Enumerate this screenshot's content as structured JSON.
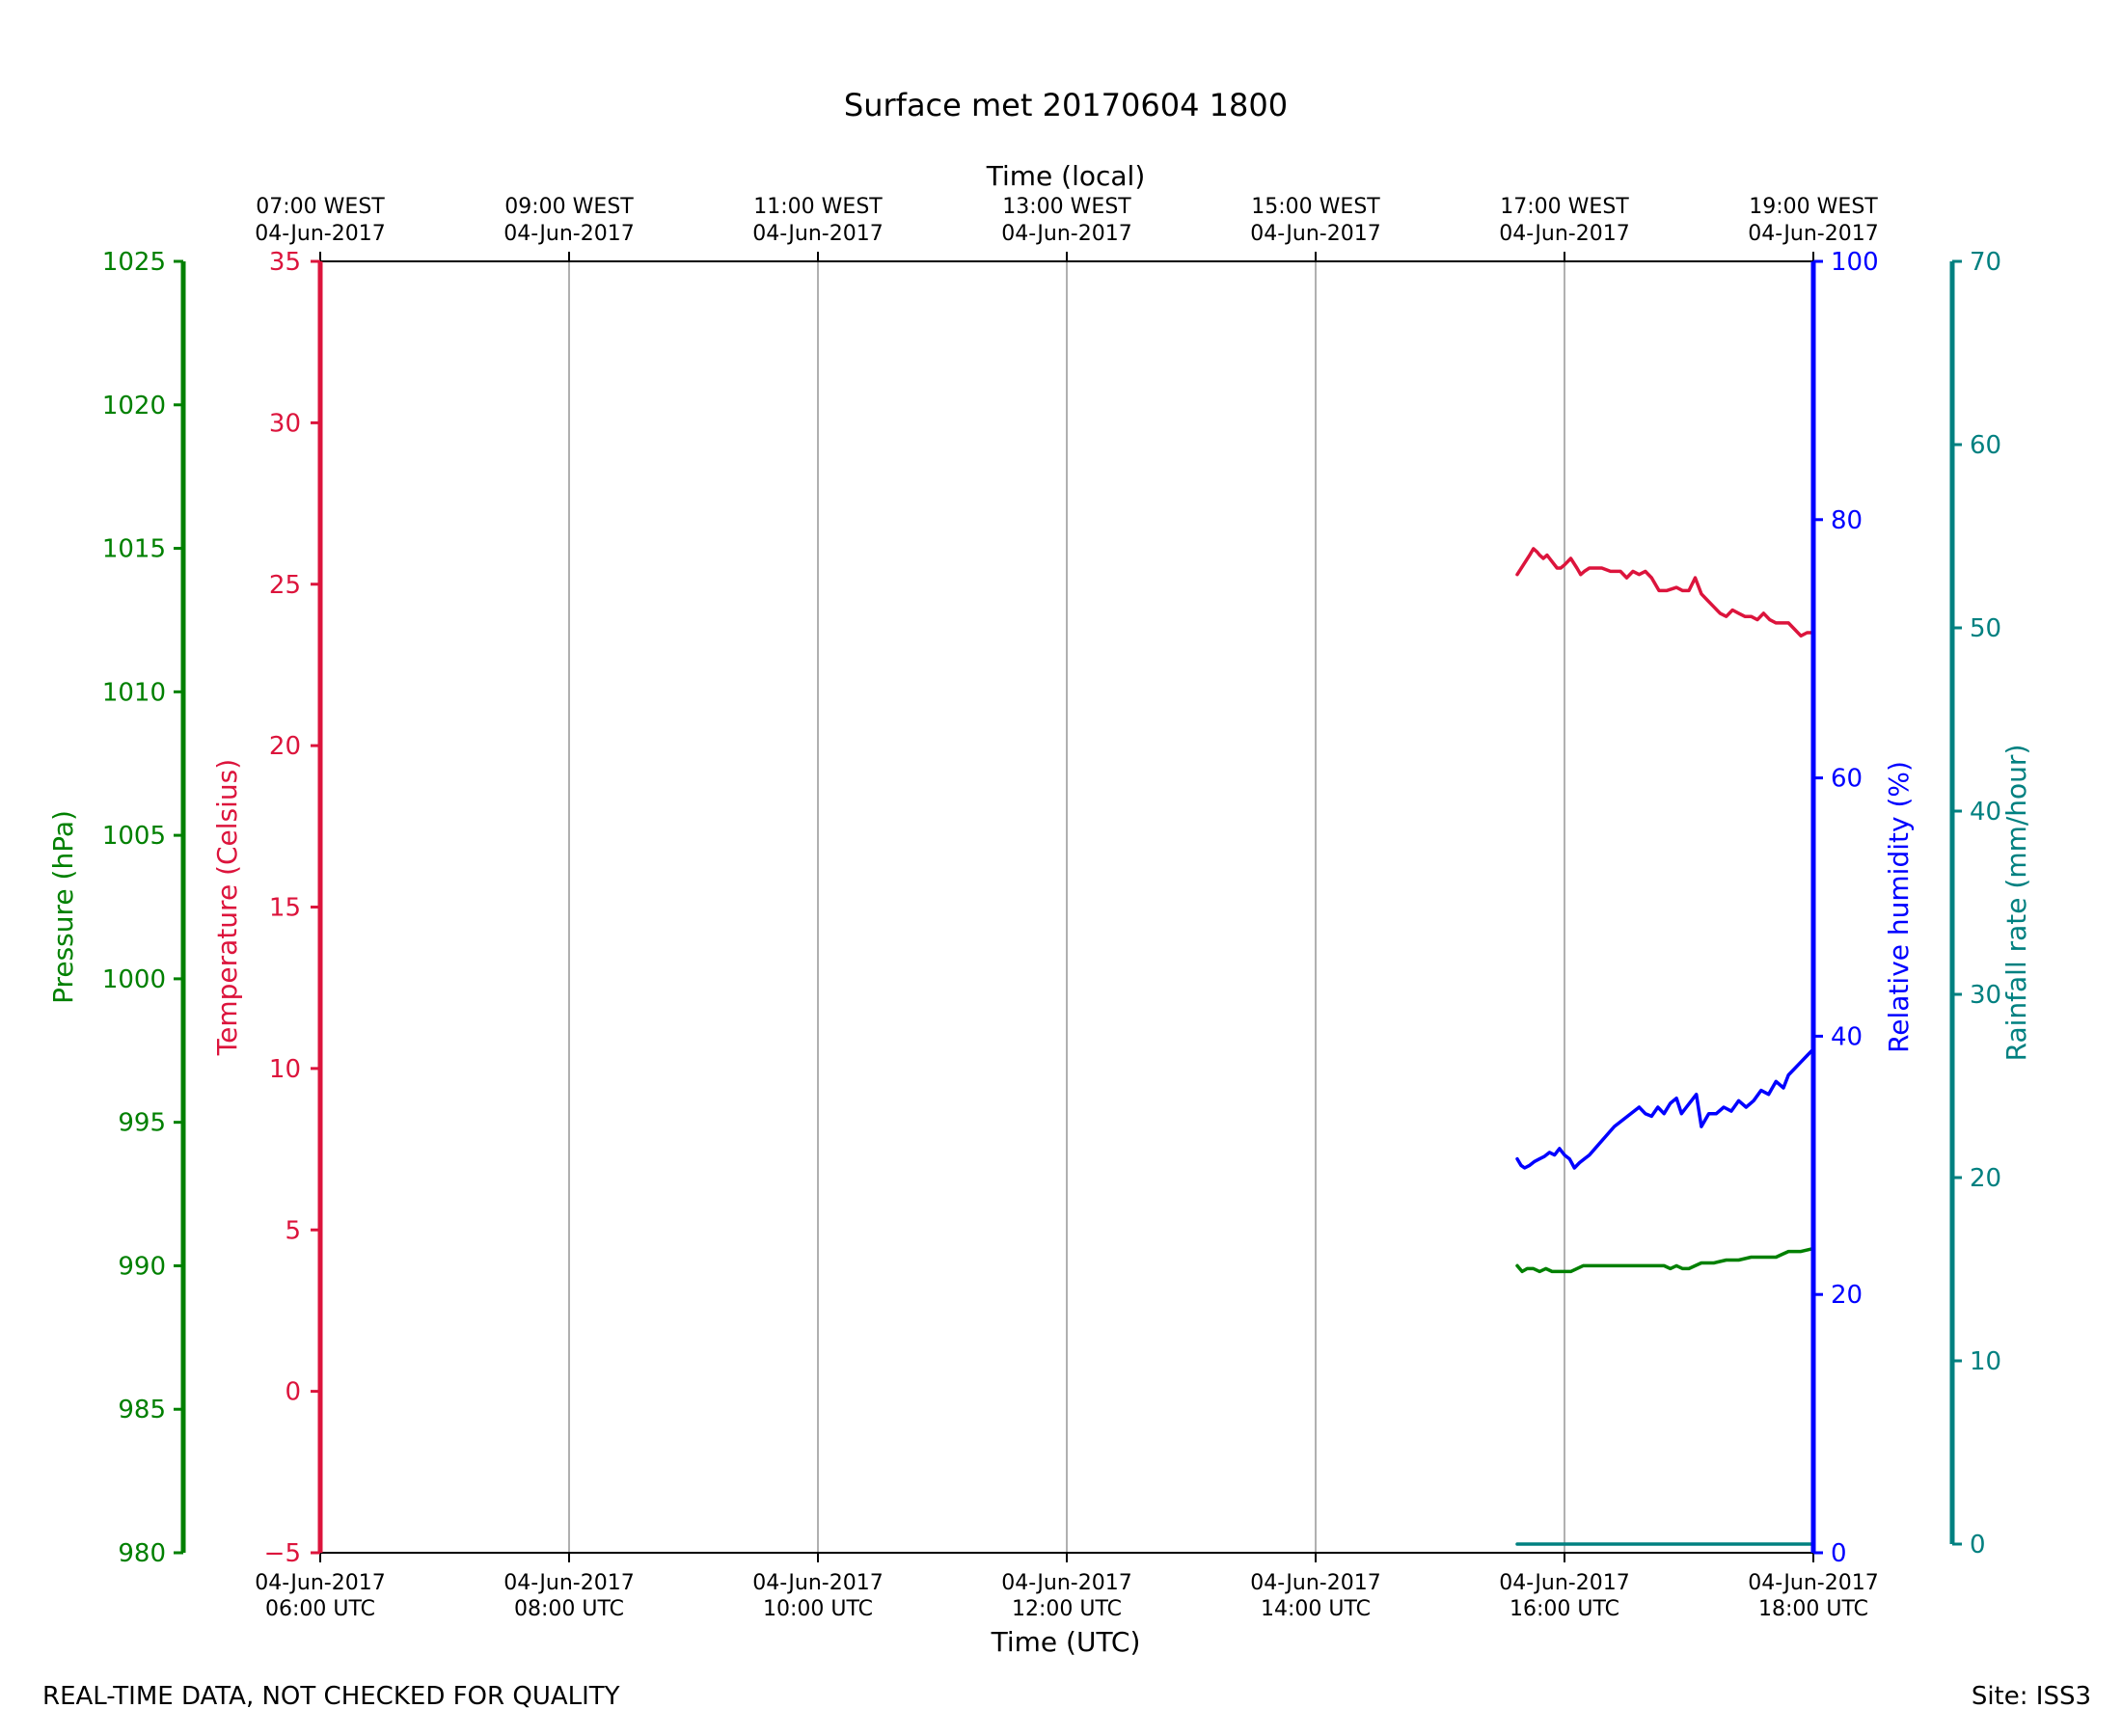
{
  "chart_data": {
    "type": "line",
    "title": "Surface met 20170604 1800",
    "x_unit": "hours UTC on 04-Jun-2017",
    "xlim": [
      6.0,
      18.0
    ],
    "bottom_axis": {
      "label": "Time (UTC)",
      "ticks": [
        {
          "x": 6,
          "l1": "04-Jun-2017",
          "l2": "06:00 UTC"
        },
        {
          "x": 8,
          "l1": "04-Jun-2017",
          "l2": "08:00 UTC"
        },
        {
          "x": 10,
          "l1": "04-Jun-2017",
          "l2": "10:00 UTC"
        },
        {
          "x": 12,
          "l1": "04-Jun-2017",
          "l2": "12:00 UTC"
        },
        {
          "x": 14,
          "l1": "04-Jun-2017",
          "l2": "14:00 UTC"
        },
        {
          "x": 16,
          "l1": "04-Jun-2017",
          "l2": "16:00 UTC"
        },
        {
          "x": 18,
          "l1": "04-Jun-2017",
          "l2": "18:00 UTC"
        }
      ]
    },
    "top_axis": {
      "label": "Time (local)",
      "ticks": [
        {
          "x": 6,
          "l1": "07:00 WEST",
          "l2": "04-Jun-2017"
        },
        {
          "x": 8,
          "l1": "09:00 WEST",
          "l2": "04-Jun-2017"
        },
        {
          "x": 10,
          "l1": "11:00 WEST",
          "l2": "04-Jun-2017"
        },
        {
          "x": 12,
          "l1": "13:00 WEST",
          "l2": "04-Jun-2017"
        },
        {
          "x": 14,
          "l1": "15:00 WEST",
          "l2": "04-Jun-2017"
        },
        {
          "x": 16,
          "l1": "17:00 WEST",
          "l2": "04-Jun-2017"
        },
        {
          "x": 18,
          "l1": "19:00 WEST",
          "l2": "04-Jun-2017"
        }
      ]
    },
    "grid": "vertical",
    "series": [
      {
        "name": "Temperature (Celsius)",
        "axis": "temperature",
        "color": "#dc143c",
        "x": [
          15.62,
          15.67,
          15.72,
          15.75,
          15.78,
          15.8,
          15.83,
          15.86,
          15.9,
          15.94,
          15.97,
          16.0,
          16.05,
          16.1,
          16.13,
          16.16,
          16.2,
          16.25,
          16.3,
          16.37,
          16.45,
          16.5,
          16.55,
          16.6,
          16.65,
          16.7,
          16.76,
          16.82,
          16.9,
          16.95,
          17.0,
          17.05,
          17.1,
          17.15,
          17.2,
          17.25,
          17.3,
          17.35,
          17.4,
          17.45,
          17.5,
          17.55,
          17.6,
          17.65,
          17.7,
          17.75,
          17.8,
          17.85,
          17.9,
          17.95,
          18.0
        ],
        "y": [
          25.3,
          25.6,
          25.9,
          26.1,
          26.0,
          25.9,
          25.8,
          25.9,
          25.7,
          25.5,
          25.5,
          25.6,
          25.8,
          25.5,
          25.3,
          25.4,
          25.5,
          25.5,
          25.5,
          25.4,
          25.4,
          25.2,
          25.4,
          25.3,
          25.4,
          25.2,
          24.8,
          24.8,
          24.9,
          24.8,
          24.8,
          25.2,
          24.7,
          24.5,
          24.3,
          24.1,
          24.0,
          24.2,
          24.1,
          24.0,
          24.0,
          23.9,
          24.1,
          23.9,
          23.8,
          23.8,
          23.8,
          23.6,
          23.4,
          23.5,
          23.5
        ]
      },
      {
        "name": "Relative humidity (%)",
        "axis": "humidity",
        "color": "#0000ff",
        "x": [
          15.62,
          15.65,
          15.68,
          15.72,
          15.76,
          15.8,
          15.84,
          15.88,
          15.92,
          15.96,
          16.0,
          16.04,
          16.08,
          16.12,
          16.16,
          16.2,
          16.4,
          16.6,
          16.65,
          16.7,
          16.75,
          16.8,
          16.85,
          16.9,
          16.94,
          16.98,
          17.02,
          17.06,
          17.1,
          17.16,
          17.22,
          17.28,
          17.34,
          17.4,
          17.46,
          17.52,
          17.58,
          17.64,
          17.7,
          17.76,
          17.8,
          17.85,
          17.9,
          17.95,
          18.0
        ],
        "y": [
          30.5,
          30.0,
          29.8,
          30.0,
          30.3,
          30.5,
          30.7,
          31.0,
          30.8,
          31.3,
          30.8,
          30.5,
          29.8,
          30.2,
          30.5,
          30.8,
          33.0,
          34.5,
          34.0,
          33.8,
          34.5,
          34.0,
          34.8,
          35.2,
          34.0,
          34.5,
          35.0,
          35.5,
          33.0,
          34.0,
          34.0,
          34.5,
          34.2,
          35.0,
          34.5,
          35.0,
          35.8,
          35.5,
          36.5,
          36.0,
          37.0,
          37.5,
          38.0,
          38.5,
          39.0
        ]
      },
      {
        "name": "Pressure (hPa)",
        "axis": "pressure",
        "color": "#008000",
        "x": [
          15.62,
          15.66,
          15.7,
          15.75,
          15.8,
          15.85,
          15.9,
          16.0,
          16.05,
          16.1,
          16.15,
          16.2,
          16.5,
          16.8,
          16.85,
          16.9,
          16.95,
          17.0,
          17.05,
          17.1,
          17.15,
          17.2,
          17.3,
          17.4,
          17.5,
          17.6,
          17.7,
          17.75,
          17.8,
          17.9,
          18.0
        ],
        "y": [
          990.0,
          989.8,
          989.9,
          989.9,
          989.8,
          989.9,
          989.8,
          989.8,
          989.8,
          989.9,
          990.0,
          990.0,
          990.0,
          990.0,
          989.9,
          990.0,
          989.9,
          989.9,
          990.0,
          990.1,
          990.1,
          990.1,
          990.2,
          990.2,
          990.3,
          990.3,
          990.3,
          990.4,
          990.5,
          990.5,
          990.6
        ]
      },
      {
        "name": "Rainfall rate (mm/hour)",
        "axis": "rainfall",
        "color": "#008080",
        "x": [
          15.62,
          18.0
        ],
        "y": [
          0,
          0
        ]
      }
    ],
    "axes": {
      "pressure": {
        "label": "Pressure (hPa)",
        "color": "#008000",
        "ylim": [
          980,
          1025
        ],
        "ticks": [
          "980",
          "985",
          "990",
          "995",
          "1000",
          "1005",
          "1010",
          "1015",
          "1020",
          "1025"
        ]
      },
      "temperature": {
        "label": "Temperature (Celsius)",
        "color": "#dc143c",
        "ylim": [
          -5,
          35
        ],
        "ticks": [
          "−5",
          "0",
          "5",
          "10",
          "15",
          "20",
          "25",
          "30",
          "35"
        ]
      },
      "humidity": {
        "label": "Relative humidity (%)",
        "color": "#0000ff",
        "ylim": [
          0,
          100
        ],
        "ticks": [
          "0",
          "20",
          "40",
          "60",
          "80",
          "100"
        ]
      },
      "rainfall": {
        "label": "Rainfall rate (mm/hour)",
        "color": "#008080",
        "ylim": [
          0,
          70
        ],
        "ticks": [
          "0",
          "10",
          "20",
          "30",
          "40",
          "50",
          "60",
          "70"
        ]
      }
    }
  },
  "footer": {
    "note": "REAL-TIME DATA, NOT CHECKED FOR QUALITY",
    "site": "Site: ISS3"
  }
}
